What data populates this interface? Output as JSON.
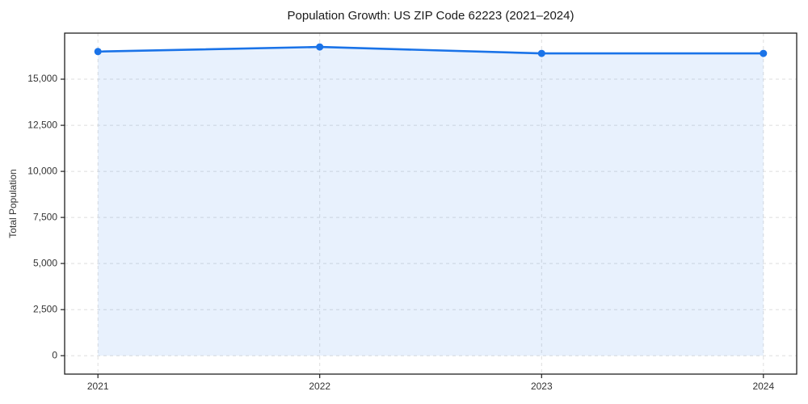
{
  "chart_data": {
    "type": "area",
    "title": "Population Growth: US ZIP Code 62223 (2021–2024)",
    "xlabel": "",
    "ylabel": "Total Population",
    "x": [
      2021,
      2022,
      2023,
      2024
    ],
    "series": [
      {
        "name": "Total Population",
        "values": [
          16500,
          16750,
          16400,
          16400
        ]
      }
    ],
    "x_tick_labels": [
      "2021",
      "2022",
      "2023",
      "2024"
    ],
    "y_ticks": [
      0,
      2500,
      5000,
      7500,
      10000,
      12500,
      15000
    ],
    "y_tick_labels": [
      "0",
      "2,500",
      "5,000",
      "7,500",
      "10,000",
      "12,500",
      "15,000"
    ],
    "xlim": [
      2020.85,
      2024.15
    ],
    "ylim": [
      -1000,
      17500
    ],
    "fill_baseline": 0,
    "grid": true,
    "legend_position": "none",
    "colors": {
      "line": "#1a73e8",
      "marker": "#1a73e8",
      "fill": "#1a73e8",
      "fill_opacity": "0.10",
      "grid": "#dedede",
      "spine": "#1f1f1f",
      "tick_text": "#333333",
      "title_text": "#1a1a1a",
      "background": "#ffffff"
    }
  }
}
